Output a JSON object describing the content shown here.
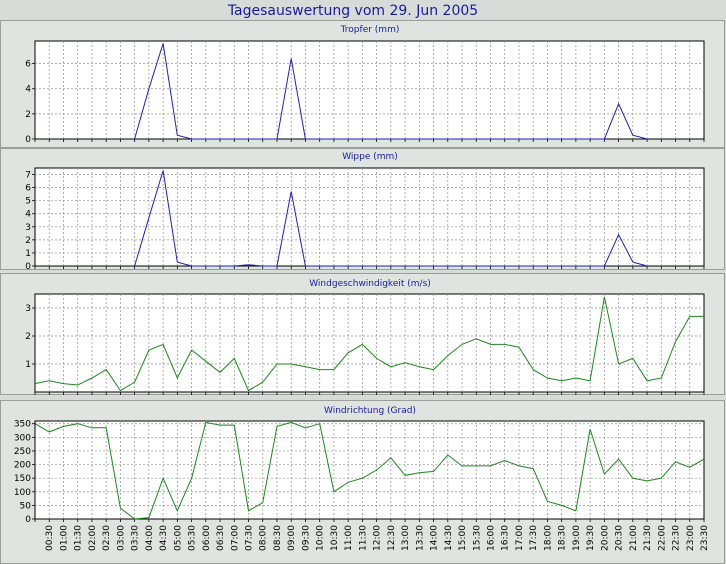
{
  "page_title": "Tagesauswertung vom 29. Jun 2005",
  "chart_data": [
    {
      "type": "line",
      "title": "Tropfer (mm)",
      "x_ticks": [
        "00:30",
        "01:00",
        "01:30",
        "02:00",
        "02:30",
        "03:00",
        "03:30",
        "04:00",
        "04:30",
        "05:00",
        "05:30",
        "06:00",
        "06:30",
        "07:00",
        "07:30",
        "08:00",
        "08:30",
        "09:00",
        "09:30",
        "10:00",
        "10:30",
        "11:00",
        "11:30",
        "12:00",
        "12:30",
        "13:00",
        "13:30",
        "14:00",
        "14:30",
        "15:00",
        "15:30",
        "16:00",
        "16:30",
        "17:00",
        "17:30",
        "18:00",
        "18:30",
        "19:00",
        "19:30",
        "20:00",
        "20:30",
        "21:00",
        "21:30",
        "22:00",
        "22:30",
        "23:00",
        "23:30"
      ],
      "y_ticks": [
        0,
        2,
        4,
        6
      ],
      "ylim": [
        0,
        7.8
      ],
      "grid": true,
      "color": "#2020c0",
      "series": [
        {
          "x": [
            7.0,
            8.0,
            9.0,
            10.0,
            11.0,
            17.0,
            18.0,
            19.0,
            40.0,
            41.0,
            42.0,
            43.0
          ],
          "y": [
            0,
            4.0,
            7.6,
            0.3,
            0,
            0,
            6.4,
            0,
            0,
            2.8,
            0.3,
            0
          ]
        }
      ]
    },
    {
      "type": "line",
      "title": "Wippe (mm)",
      "x_ticks": [
        "00:30",
        "01:00",
        "01:30",
        "02:00",
        "02:30",
        "03:00",
        "03:30",
        "04:00",
        "04:30",
        "05:00",
        "05:30",
        "06:00",
        "06:30",
        "07:00",
        "07:30",
        "08:00",
        "08:30",
        "09:00",
        "09:30",
        "10:00",
        "10:30",
        "11:00",
        "11:30",
        "12:00",
        "12:30",
        "13:00",
        "13:30",
        "14:00",
        "14:30",
        "15:00",
        "15:30",
        "16:00",
        "16:30",
        "17:00",
        "17:30",
        "18:00",
        "18:30",
        "19:00",
        "19:30",
        "20:00",
        "20:30",
        "21:00",
        "21:30",
        "22:00",
        "22:30",
        "23:00",
        "23:30"
      ],
      "y_ticks": [
        0,
        1,
        2,
        3,
        4,
        5,
        6,
        7
      ],
      "ylim": [
        0,
        7.5
      ],
      "grid": true,
      "color": "#2020c0",
      "series": [
        {
          "x": [
            7.0,
            8.0,
            9.0,
            10.0,
            11.0,
            14.0,
            15.0,
            16.0,
            17.0,
            18.0,
            19.0,
            40.0,
            41.0,
            42.0,
            43.0
          ],
          "y": [
            0,
            3.7,
            7.3,
            0.3,
            0,
            0,
            0.1,
            0,
            0,
            5.7,
            0,
            0,
            2.4,
            0.3,
            0
          ]
        }
      ]
    },
    {
      "type": "line",
      "title": "Windgeschwindigkeit (m/s)",
      "x_ticks": [
        "00:30",
        "01:00",
        "01:30",
        "02:00",
        "02:30",
        "03:00",
        "03:30",
        "04:00",
        "04:30",
        "05:00",
        "05:30",
        "06:00",
        "06:30",
        "07:00",
        "07:30",
        "08:00",
        "08:30",
        "09:00",
        "09:30",
        "10:00",
        "10:30",
        "11:00",
        "11:30",
        "12:00",
        "12:30",
        "13:00",
        "13:30",
        "14:00",
        "14:30",
        "15:00",
        "15:30",
        "16:00",
        "16:30",
        "17:00",
        "17:30",
        "18:00",
        "18:30",
        "19:00",
        "19:30",
        "20:00",
        "20:30",
        "21:00",
        "21:30",
        "22:00",
        "22:30",
        "23:00",
        "23:30"
      ],
      "y_ticks": [
        1,
        2,
        3
      ],
      "ylim": [
        0,
        3.5
      ],
      "grid": true,
      "color": "#1a8a1a",
      "series": [
        {
          "x": [
            0.0,
            1.0,
            2.0,
            3.0,
            4.0,
            5.0,
            6.0,
            7.0,
            8.0,
            9.0,
            10.0,
            11.0,
            12.0,
            13.0,
            14.0,
            15.0,
            16.0,
            17.0,
            18.0,
            19.0,
            20.0,
            21.0,
            22.0,
            23.0,
            24.0,
            25.0,
            26.0,
            27.0,
            28.0,
            29.0,
            30.0,
            31.0,
            32.0,
            33.0,
            34.0,
            35.0,
            36.0,
            37.0,
            38.0,
            39.0,
            40.0,
            41.0,
            42.0,
            43.0,
            44.0,
            45.0,
            46.0,
            47.0
          ],
          "y": [
            0.3,
            0.4,
            0.3,
            0.25,
            0.5,
            0.8,
            0.05,
            0.35,
            1.5,
            1.7,
            0.5,
            1.5,
            1.1,
            0.7,
            1.2,
            0.05,
            0.35,
            1.0,
            1.0,
            0.9,
            0.8,
            0.8,
            1.4,
            1.7,
            1.2,
            0.9,
            1.05,
            0.9,
            0.8,
            1.3,
            1.7,
            1.9,
            1.7,
            1.7,
            1.6,
            0.8,
            0.5,
            0.4,
            0.5,
            0.4,
            3.4,
            1.0,
            1.2,
            0.4,
            0.5,
            1.8,
            2.7,
            2.7
          ]
        }
      ]
    },
    {
      "type": "line",
      "title": "Windrichtung (Grad)",
      "x_ticks": [
        "00:30",
        "01:00",
        "01:30",
        "02:00",
        "02:30",
        "03:00",
        "03:30",
        "04:00",
        "04:30",
        "05:00",
        "05:30",
        "06:00",
        "06:30",
        "07:00",
        "07:30",
        "08:00",
        "08:30",
        "09:00",
        "09:30",
        "10:00",
        "10:30",
        "11:00",
        "11:30",
        "12:00",
        "12:30",
        "13:00",
        "13:30",
        "14:00",
        "14:30",
        "15:00",
        "15:30",
        "16:00",
        "16:30",
        "17:00",
        "17:30",
        "18:00",
        "18:30",
        "19:00",
        "19:30",
        "20:00",
        "20:30",
        "21:00",
        "21:30",
        "22:00",
        "22:30",
        "23:00",
        "23:30"
      ],
      "y_ticks": [
        0,
        50,
        100,
        150,
        200,
        250,
        300,
        350
      ],
      "ylim": [
        0,
        360
      ],
      "grid": true,
      "color": "#1a8a1a",
      "series": [
        {
          "x": [
            0.0,
            1.0,
            2.0,
            3.0,
            4.0,
            5.0,
            6.0,
            7.0,
            8.0,
            9.0,
            10.0,
            11.0,
            12.0,
            13.0,
            14.0,
            15.0,
            16.0,
            17.0,
            18.0,
            19.0,
            20.0,
            21.0,
            22.0,
            23.0,
            24.0,
            25.0,
            26.0,
            27.0,
            28.0,
            29.0,
            30.0,
            31.0,
            32.0,
            33.0,
            34.0,
            35.0,
            36.0,
            37.0,
            38.0,
            39.0,
            40.0,
            41.0,
            42.0,
            43.0,
            44.0,
            45.0,
            46.0,
            47.0
          ],
          "y": [
            350,
            320,
            340,
            350,
            335,
            335,
            40,
            0,
            5,
            150,
            30,
            150,
            355,
            345,
            345,
            30,
            60,
            340,
            355,
            335,
            350,
            100,
            135,
            150,
            180,
            225,
            160,
            170,
            175,
            235,
            195,
            195,
            195,
            215,
            195,
            185,
            65,
            50,
            30,
            330,
            165,
            220,
            150,
            140,
            150,
            210,
            190,
            220
          ]
        }
      ]
    }
  ]
}
